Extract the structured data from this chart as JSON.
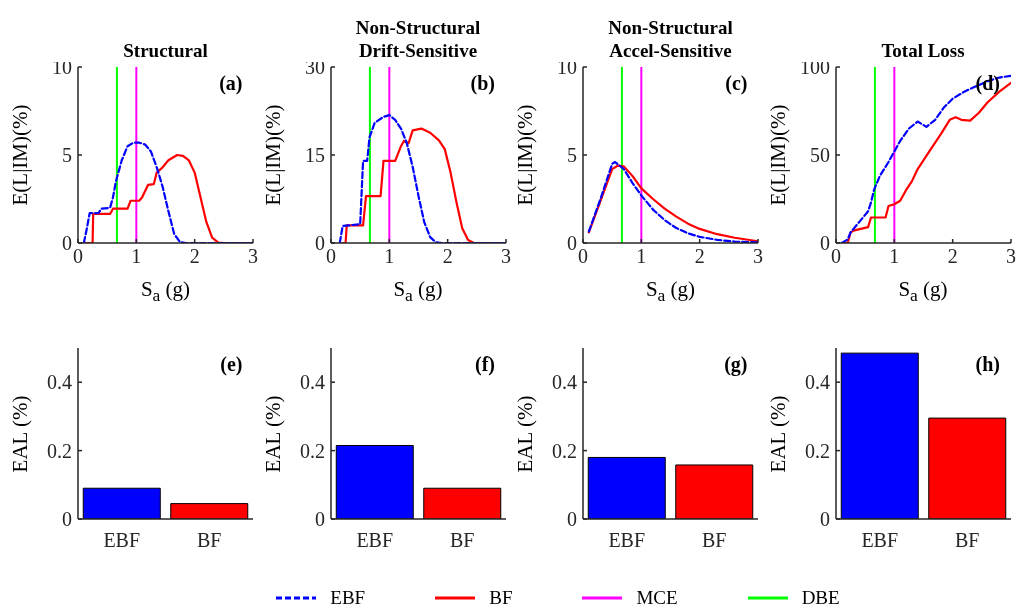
{
  "chart_data": [
    {
      "type": "line",
      "title": "Structural",
      "xlabel": "S$_{a}$ (g)",
      "ylabel": "E(L|IM)(%)",
      "annotations": [
        "(a)"
      ],
      "xlim": [
        0,
        3
      ],
      "xticks": [
        0,
        1,
        2,
        3
      ],
      "ylim": [
        0,
        10
      ],
      "yticks": [
        0,
        5,
        10
      ],
      "grid": false,
      "marker": "none",
      "legend": "bottom",
      "ref_lines": [
        {
          "axis": "x",
          "value": 1.0,
          "label": "MCE",
          "color": "#ff00ff"
        },
        {
          "axis": "x",
          "value": 0.667,
          "label": "DBE",
          "color": "#00ff00"
        }
      ],
      "series": [
        {
          "name": "EBF",
          "color": "#0000ff",
          "line_style": "dashed",
          "x": [
            0.1,
            0.15,
            0.2,
            0.35,
            0.4,
            0.55,
            0.6,
            0.65,
            0.75,
            0.85,
            0.95,
            1.05,
            1.15,
            1.25,
            1.35,
            1.45,
            1.55,
            1.65,
            1.75,
            1.85,
            3.0
          ],
          "values": [
            0,
            0.8,
            1.7,
            1.7,
            1.95,
            2.0,
            2.6,
            3.5,
            4.7,
            5.5,
            5.7,
            5.7,
            5.6,
            5.2,
            4.3,
            3.2,
            1.8,
            0.5,
            0.05,
            0,
            0
          ]
        },
        {
          "name": "BF",
          "color": "#ff0000",
          "line_style": "solid",
          "x": [
            0.1,
            0.25,
            0.26,
            0.55,
            0.6,
            0.85,
            0.9,
            1.05,
            1.1,
            1.2,
            1.3,
            1.35,
            1.45,
            1.55,
            1.7,
            1.8,
            1.9,
            2.0,
            2.1,
            2.2,
            2.3,
            2.4,
            2.5,
            3.0
          ],
          "values": [
            0,
            0,
            1.65,
            1.65,
            1.95,
            1.95,
            2.4,
            2.4,
            2.6,
            3.3,
            3.35,
            4.0,
            4.3,
            4.7,
            5.0,
            4.95,
            4.7,
            4.0,
            2.6,
            1.2,
            0.3,
            0.03,
            0,
            0
          ]
        }
      ]
    },
    {
      "type": "line",
      "title": "Non-Structural\nDrift-Sensitive",
      "xlabel": "S$_{a}$ (g)",
      "ylabel": "E(L|IM)(%)",
      "annotations": [
        "(b)"
      ],
      "xlim": [
        0,
        3
      ],
      "xticks": [
        0,
        1,
        2,
        3
      ],
      "ylim": [
        0,
        30
      ],
      "yticks": [
        0,
        15,
        30
      ],
      "grid": false,
      "marker": "none",
      "ref_lines": [
        {
          "axis": "x",
          "value": 1.0,
          "color": "#ff00ff"
        },
        {
          "axis": "x",
          "value": 0.667,
          "color": "#00ff00"
        }
      ],
      "series": [
        {
          "color": "#0000ff",
          "line_style": "dashed",
          "x": [
            0.15,
            0.2,
            0.3,
            0.5,
            0.55,
            0.62,
            0.66,
            0.75,
            0.9,
            1.0,
            1.1,
            1.2,
            1.3,
            1.4,
            1.5,
            1.6,
            1.7,
            1.8,
            1.9,
            3.0
          ],
          "values": [
            0,
            2.9,
            3,
            3.2,
            14,
            14,
            18,
            20.5,
            21.5,
            21.8,
            21,
            19.5,
            17,
            13,
            8,
            3.5,
            1,
            0.1,
            0,
            0
          ]
        },
        {
          "color": "#ff0000",
          "line_style": "solid",
          "x": [
            0.2,
            0.25,
            0.27,
            0.55,
            0.6,
            0.85,
            0.9,
            1.0,
            1.1,
            1.2,
            1.25,
            1.33,
            1.4,
            1.55,
            1.7,
            1.85,
            1.95,
            2.05,
            2.15,
            2.25,
            2.35,
            2.45,
            3.0
          ],
          "values": [
            0,
            0,
            3,
            3,
            8,
            8,
            14,
            14,
            14,
            16.5,
            17.4,
            17,
            19.2,
            19.5,
            18.8,
            17.5,
            16,
            12,
            7,
            2.5,
            0.5,
            0,
            0
          ]
        }
      ]
    },
    {
      "type": "line",
      "title": "Non-Structural\nAccel-Sensitive",
      "xlabel": "S$_{a}$ (g)",
      "ylabel": "E(L|IM)(%)",
      "annotations": [
        "(c)"
      ],
      "xlim": [
        0,
        3
      ],
      "xticks": [
        0,
        1,
        2,
        3
      ],
      "ylim": [
        0,
        10
      ],
      "yticks": [
        0,
        5,
        10
      ],
      "grid": false,
      "marker": "none",
      "ref_lines": [
        {
          "axis": "x",
          "value": 1.0,
          "color": "#ff00ff"
        },
        {
          "axis": "x",
          "value": 0.667,
          "color": "#00ff00"
        }
      ],
      "series": [
        {
          "color": "#0000ff",
          "line_style": "dashed",
          "x": [
            0.1,
            0.3,
            0.5,
            0.55,
            0.7,
            0.85,
            1.0,
            1.2,
            1.4,
            1.6,
            1.8,
            2.0,
            2.3,
            2.6,
            3.0
          ],
          "values": [
            0.65,
            2.5,
            4.5,
            4.6,
            4.2,
            3.4,
            2.7,
            1.9,
            1.3,
            0.85,
            0.55,
            0.35,
            0.18,
            0.08,
            0.03
          ]
        },
        {
          "color": "#ff0000",
          "line_style": "solid",
          "x": [
            0.1,
            0.3,
            0.5,
            0.6,
            0.7,
            0.85,
            1.0,
            1.2,
            1.4,
            1.6,
            1.8,
            2.0,
            2.3,
            2.6,
            3.0
          ],
          "values": [
            0.6,
            2.4,
            4.2,
            4.4,
            4.35,
            3.8,
            3.1,
            2.5,
            1.95,
            1.5,
            1.1,
            0.8,
            0.5,
            0.3,
            0.1
          ]
        }
      ]
    },
    {
      "type": "line",
      "title": "Total Loss",
      "xlabel": "S$_{a}$ (g)",
      "ylabel": "E(L|IM)(%)",
      "annotations": [
        "(d)"
      ],
      "xlim": [
        0,
        3
      ],
      "xticks": [
        0,
        1,
        2,
        3
      ],
      "ylim": [
        0,
        100
      ],
      "yticks": [
        0,
        50,
        100
      ],
      "grid": false,
      "marker": "none",
      "ref_lines": [
        {
          "axis": "x",
          "value": 1.0,
          "color": "#ff00ff"
        },
        {
          "axis": "x",
          "value": 0.667,
          "color": "#00ff00"
        }
      ],
      "series": [
        {
          "color": "#0000ff",
          "line_style": "dashed",
          "x": [
            0.1,
            0.2,
            0.25,
            0.4,
            0.55,
            0.6,
            0.65,
            0.75,
            0.9,
            1.0,
            1.1,
            1.25,
            1.4,
            1.55,
            1.7,
            1.85,
            2.0,
            2.2,
            2.4,
            2.6,
            2.8,
            3.0
          ],
          "values": [
            0,
            2,
            6,
            12,
            18,
            23,
            30,
            38,
            46,
            52,
            58,
            65,
            69,
            66,
            70,
            77,
            82,
            86,
            89,
            92,
            94,
            95
          ]
        },
        {
          "color": "#ff0000",
          "line_style": "solid",
          "x": [
            0.1,
            0.2,
            0.25,
            0.3,
            0.55,
            0.6,
            0.85,
            0.9,
            1.0,
            1.1,
            1.2,
            1.3,
            1.4,
            1.6,
            1.8,
            1.95,
            2.05,
            2.15,
            2.3,
            2.45,
            2.6,
            2.8,
            3.0
          ],
          "values": [
            0,
            0,
            6,
            7,
            9,
            14.5,
            14.5,
            21,
            22,
            24,
            30,
            35,
            42,
            52,
            62,
            70,
            71.5,
            70,
            69.5,
            74,
            80,
            86,
            91
          ]
        }
      ]
    },
    {
      "type": "bar",
      "ylabel": "EAL (%)",
      "annotations": [
        "(e)"
      ],
      "categories": [
        "EBF",
        "BF"
      ],
      "values": [
        0.09,
        0.045
      ],
      "colors": [
        "#0000ff",
        "#ff0000"
      ],
      "ylim": [
        0,
        0.5
      ],
      "yticks": [
        0,
        0.2,
        0.4
      ],
      "grid": false
    },
    {
      "type": "bar",
      "ylabel": "EAL (%)",
      "annotations": [
        "(f)"
      ],
      "categories": [
        "EBF",
        "BF"
      ],
      "values": [
        0.215,
        0.09
      ],
      "colors": [
        "#0000ff",
        "#ff0000"
      ],
      "ylim": [
        0,
        0.5
      ],
      "yticks": [
        0,
        0.2,
        0.4
      ],
      "grid": false
    },
    {
      "type": "bar",
      "ylabel": "EAL (%)",
      "annotations": [
        "(g)"
      ],
      "categories": [
        "EBF",
        "BF"
      ],
      "values": [
        0.18,
        0.158
      ],
      "colors": [
        "#0000ff",
        "#ff0000"
      ],
      "ylim": [
        0,
        0.5
      ],
      "yticks": [
        0,
        0.2,
        0.4
      ],
      "grid": false
    },
    {
      "type": "bar",
      "ylabel": "EAL (%)",
      "annotations": [
        "(h)"
      ],
      "categories": [
        "EBF",
        "BF"
      ],
      "values": [
        0.485,
        0.295
      ],
      "colors": [
        "#0000ff",
        "#ff0000"
      ],
      "ylim": [
        0,
        0.5
      ],
      "yticks": [
        0,
        0.2,
        0.4
      ],
      "grid": false
    }
  ]
}
